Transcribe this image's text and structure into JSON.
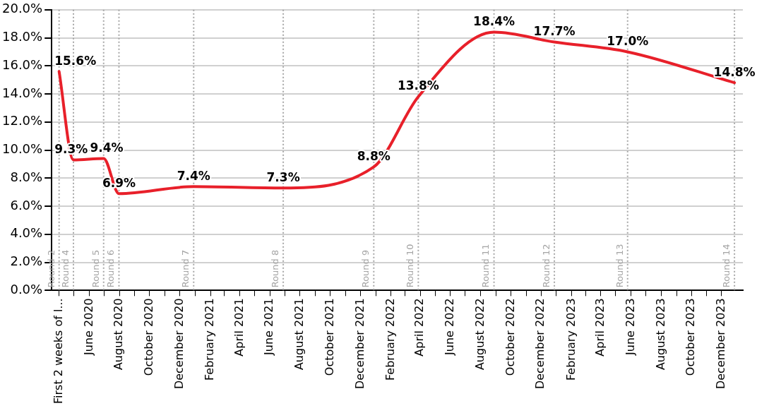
{
  "chart_data": {
    "type": "line",
    "x": [
      "2020-04-01",
      "2020-04-30",
      "2020-06-30",
      "2020-07-31",
      "2020-12-29",
      "2021-06-28",
      "2021-12-28",
      "2022-03-28",
      "2022-08-28",
      "2022-12-28",
      "2023-05-25",
      "2023-12-27"
    ],
    "series": [
      {
        "color": "#e8202a",
        "values": [
          15.6,
          9.3,
          9.4,
          6.9,
          7.4,
          7.3,
          8.8,
          13.8,
          18.4,
          17.7,
          17.0,
          14.8
        ],
        "value_labels": [
          "15.6%",
          "9.3%",
          "9.4%",
          "6.9%",
          "7.4%",
          "7.3%",
          "8.8%",
          "13.8%",
          "18.4%",
          "17.7%",
          "17.0%",
          "14.8%"
        ]
      }
    ],
    "xlim": [
      "2020-03-17",
      "2024-01-13"
    ],
    "xticks": [
      {
        "value": "2020-04",
        "label": "First 2 weeks of l..."
      },
      {
        "value": "2020-05",
        "label": null
      },
      {
        "value": "2020-06",
        "label": "June 2020"
      },
      {
        "value": "2020-07",
        "label": null
      },
      {
        "value": "2020-08",
        "label": "August 2020"
      },
      {
        "value": "2020-09",
        "label": null
      },
      {
        "value": "2020-10",
        "label": "October 2020"
      },
      {
        "value": "2020-11",
        "label": null
      },
      {
        "value": "2020-12",
        "label": "December 2020"
      },
      {
        "value": "2021-01",
        "label": null
      },
      {
        "value": "2021-02",
        "label": "February 2021"
      },
      {
        "value": "2021-03",
        "label": null
      },
      {
        "value": "2021-04",
        "label": "April 2021"
      },
      {
        "value": "2021-05",
        "label": null
      },
      {
        "value": "2021-06",
        "label": "June 2021"
      },
      {
        "value": "2021-07",
        "label": null
      },
      {
        "value": "2021-08",
        "label": "August 2021"
      },
      {
        "value": "2021-09",
        "label": null
      },
      {
        "value": "2021-10",
        "label": "October 2021"
      },
      {
        "value": "2021-11",
        "label": null
      },
      {
        "value": "2021-12",
        "label": "December 2021"
      },
      {
        "value": "2022-01",
        "label": null
      },
      {
        "value": "2022-02",
        "label": "February 2022"
      },
      {
        "value": "2022-03",
        "label": null
      },
      {
        "value": "2022-04",
        "label": "April 2022"
      },
      {
        "value": "2022-05",
        "label": null
      },
      {
        "value": "2022-06",
        "label": "June 2022"
      },
      {
        "value": "2022-07",
        "label": null
      },
      {
        "value": "2022-08",
        "label": "August 2022"
      },
      {
        "value": "2022-09",
        "label": null
      },
      {
        "value": "2022-10",
        "label": "October 2022"
      },
      {
        "value": "2022-11",
        "label": null
      },
      {
        "value": "2022-12",
        "label": "December 2022"
      },
      {
        "value": "2023-01",
        "label": null
      },
      {
        "value": "2023-02",
        "label": "February 2023"
      },
      {
        "value": "2023-03",
        "label": null
      },
      {
        "value": "2023-04",
        "label": "April 2023"
      },
      {
        "value": "2023-05",
        "label": null
      },
      {
        "value": "2023-06",
        "label": "June 2023"
      },
      {
        "value": "2023-07",
        "label": null
      },
      {
        "value": "2023-08",
        "label": "August 2023"
      },
      {
        "value": "2023-09",
        "label": null
      },
      {
        "value": "2023-10",
        "label": "October 2023"
      },
      {
        "value": "2023-11",
        "label": null
      },
      {
        "value": "2023-12",
        "label": "December 2023"
      }
    ],
    "ylim": [
      0,
      20
    ],
    "yticks": [
      {
        "value": 0,
        "label": "0.0%"
      },
      {
        "value": 2,
        "label": "2.0%"
      },
      {
        "value": 4,
        "label": "4.0%"
      },
      {
        "value": 6,
        "label": "6.0%"
      },
      {
        "value": 8,
        "label": "8.0%"
      },
      {
        "value": 10,
        "label": "10.0%"
      },
      {
        "value": 12,
        "label": "12.0%"
      },
      {
        "value": 14,
        "label": "14.0%"
      },
      {
        "value": 16,
        "label": "16.0%"
      },
      {
        "value": 18,
        "label": "18.0%"
      },
      {
        "value": 20,
        "label": "20.0%"
      }
    ],
    "ref_lines": [
      {
        "axis": "x",
        "value": "2020-04-01",
        "label": "Round 2",
        "color": "#a6a6a6",
        "line_style": "dotted"
      },
      {
        "axis": "x",
        "value": "2020-04-30",
        "label": "Round 4",
        "color": "#a6a6a6",
        "line_style": "dotted"
      },
      {
        "axis": "x",
        "value": "2020-06-30",
        "label": "Round 5",
        "color": "#a6a6a6",
        "line_style": "dotted"
      },
      {
        "axis": "x",
        "value": "2020-07-31",
        "label": "Round 6",
        "color": "#a6a6a6",
        "line_style": "dotted"
      },
      {
        "axis": "x",
        "value": "2020-12-29",
        "label": "Round 7",
        "color": "#a6a6a6",
        "line_style": "dotted"
      },
      {
        "axis": "x",
        "value": "2021-06-28",
        "label": "Round 8",
        "color": "#a6a6a6",
        "line_style": "dotted"
      },
      {
        "axis": "x",
        "value": "2021-12-28",
        "label": "Round 9",
        "color": "#a6a6a6",
        "line_style": "dotted"
      },
      {
        "axis": "x",
        "value": "2022-03-28",
        "label": "Round 10",
        "color": "#a6a6a6",
        "line_style": "dotted"
      },
      {
        "axis": "x",
        "value": "2022-08-28",
        "label": "Round 11",
        "color": "#a6a6a6",
        "line_style": "dotted"
      },
      {
        "axis": "x",
        "value": "2022-12-28",
        "label": "Round 12",
        "color": "#a6a6a6",
        "line_style": "dotted"
      },
      {
        "axis": "x",
        "value": "2023-05-25",
        "label": "Round 13",
        "color": "#a6a6a6",
        "line_style": "dotted"
      },
      {
        "axis": "x",
        "value": "2023-12-27",
        "label": "Round 14",
        "color": "#a6a6a6",
        "line_style": "dotted"
      }
    ],
    "grid": "y",
    "legend": false,
    "marker": "none",
    "line_style": "solid"
  }
}
